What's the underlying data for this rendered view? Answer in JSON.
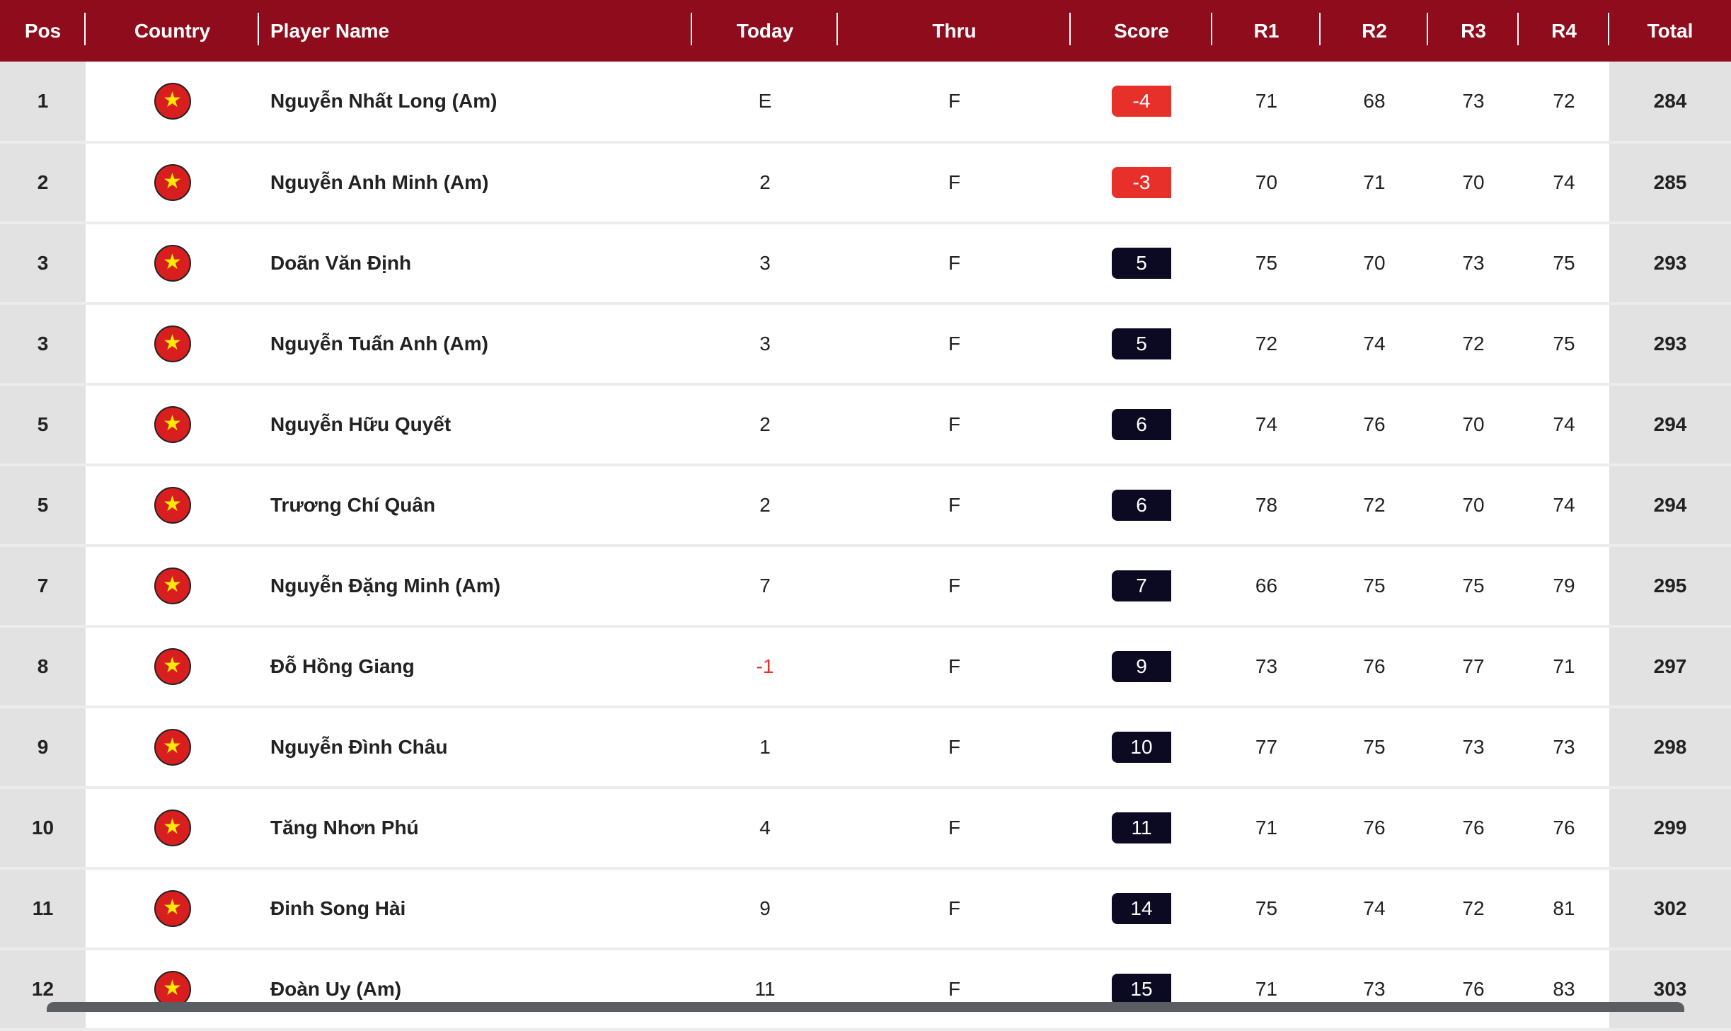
{
  "colors": {
    "header": "#8e0c1c",
    "under_par": "#e8302a",
    "over_par": "#0c0a22"
  },
  "headers": [
    "Pos",
    "Country",
    "Player Name",
    "Today",
    "Thru",
    "Score",
    "R1",
    "R2",
    "R3",
    "R4",
    "Total"
  ],
  "country_icon": "vietnam-flag-icon",
  "rows": [
    {
      "pos": "1",
      "name": "Nguyễn Nhất Long (Am)",
      "today": "E",
      "thru": "F",
      "score": "-4",
      "r1": "71",
      "r2": "68",
      "r3": "73",
      "r4": "72",
      "total": "284"
    },
    {
      "pos": "2",
      "name": "Nguyễn Anh Minh (Am)",
      "today": "2",
      "thru": "F",
      "score": "-3",
      "r1": "70",
      "r2": "71",
      "r3": "70",
      "r4": "74",
      "total": "285"
    },
    {
      "pos": "3",
      "name": "Doãn Văn Định",
      "today": "3",
      "thru": "F",
      "score": "5",
      "r1": "75",
      "r2": "70",
      "r3": "73",
      "r4": "75",
      "total": "293"
    },
    {
      "pos": "3",
      "name": "Nguyễn Tuấn Anh (Am)",
      "today": "3",
      "thru": "F",
      "score": "5",
      "r1": "72",
      "r2": "74",
      "r3": "72",
      "r4": "75",
      "total": "293"
    },
    {
      "pos": "5",
      "name": "Nguyễn Hữu Quyết",
      "today": "2",
      "thru": "F",
      "score": "6",
      "r1": "74",
      "r2": "76",
      "r3": "70",
      "r4": "74",
      "total": "294"
    },
    {
      "pos": "5",
      "name": "Trương Chí Quân",
      "today": "2",
      "thru": "F",
      "score": "6",
      "r1": "78",
      "r2": "72",
      "r3": "70",
      "r4": "74",
      "total": "294"
    },
    {
      "pos": "7",
      "name": "Nguyễn Đặng Minh (Am)",
      "today": "7",
      "thru": "F",
      "score": "7",
      "r1": "66",
      "r2": "75",
      "r3": "75",
      "r4": "79",
      "total": "295"
    },
    {
      "pos": "8",
      "name": "Đỗ Hồng Giang",
      "today": "-1",
      "thru": "F",
      "score": "9",
      "r1": "73",
      "r2": "76",
      "r3": "77",
      "r4": "71",
      "total": "297"
    },
    {
      "pos": "9",
      "name": "Nguyễn Đình Châu",
      "today": "1",
      "thru": "F",
      "score": "10",
      "r1": "77",
      "r2": "75",
      "r3": "73",
      "r4": "73",
      "total": "298"
    },
    {
      "pos": "10",
      "name": "Tăng Nhơn Phú",
      "today": "4",
      "thru": "F",
      "score": "11",
      "r1": "71",
      "r2": "76",
      "r3": "76",
      "r4": "76",
      "total": "299"
    },
    {
      "pos": "11",
      "name": "Đinh Song Hài",
      "today": "9",
      "thru": "F",
      "score": "14",
      "r1": "75",
      "r2": "74",
      "r3": "72",
      "r4": "81",
      "total": "302"
    },
    {
      "pos": "12",
      "name": "Đoàn Uy (Am)",
      "today": "11",
      "thru": "F",
      "score": "15",
      "r1": "71",
      "r2": "73",
      "r3": "76",
      "r4": "83",
      "total": "303"
    }
  ]
}
